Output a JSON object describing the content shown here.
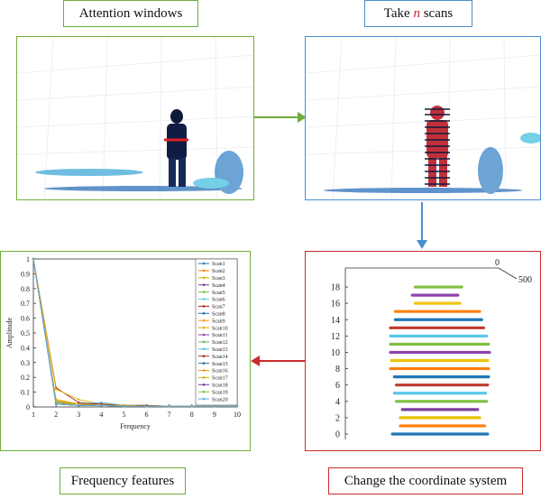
{
  "labels": {
    "attention": "Attention windows",
    "take_prefix": "Take ",
    "take_n": "n",
    "take_suffix": " scans",
    "frequency_features": "Frequency features",
    "change_coordinate": "Change the coordinate system"
  },
  "colors": {
    "green": "#6fae3a",
    "blue": "#4a8fd0",
    "red": "#cc2b2b"
  },
  "chart_data": [
    {
      "type": "line",
      "xlabel": "Frequency",
      "ylabel": "Amplitude",
      "x": [
        1,
        2,
        3,
        4,
        5,
        6,
        7,
        8,
        9,
        10
      ],
      "xlim": [
        1,
        10
      ],
      "ylim": [
        0,
        1
      ],
      "x_ticks": [
        "1",
        "2",
        "3",
        "4",
        "5",
        "6",
        "7",
        "8",
        "9",
        "10"
      ],
      "y_ticks": [
        "0",
        "0.1",
        "0.2",
        "0.3",
        "0.4",
        "0.5",
        "0.6",
        "0.7",
        "0.8",
        "0.9",
        "1"
      ],
      "legend_position": "top-right",
      "series": [
        {
          "name": "Scan1",
          "color": "#1f77b4",
          "values": [
            1,
            0.03,
            0.01,
            0.01,
            0.005,
            0.005,
            0.005,
            0.005,
            0.005,
            0.005
          ]
        },
        {
          "name": "Scan2",
          "color": "#ff7f0e",
          "values": [
            1,
            0.04,
            0.02,
            0.01,
            0.01,
            0.005,
            0.005,
            0.005,
            0.005,
            0.005
          ]
        },
        {
          "name": "Scan3",
          "color": "#c8b400",
          "values": [
            1,
            0.05,
            0.02,
            0.01,
            0.01,
            0.005,
            0.005,
            0.005,
            0.005,
            0.005
          ]
        },
        {
          "name": "Scan4",
          "color": "#7b3f9e",
          "values": [
            1,
            0.02,
            0.01,
            0.01,
            0.005,
            0.005,
            0.005,
            0.005,
            0.005,
            0.005
          ]
        },
        {
          "name": "Scan5",
          "color": "#7fbf3f",
          "values": [
            1,
            0.03,
            0.01,
            0.01,
            0.005,
            0.005,
            0.005,
            0.005,
            0.005,
            0.005
          ]
        },
        {
          "name": "Scan6",
          "color": "#5bc8e8",
          "values": [
            1,
            0.04,
            0.02,
            0.01,
            0.01,
            0.005,
            0.005,
            0.005,
            0.005,
            0.005
          ]
        },
        {
          "name": "Scan7",
          "color": "#b22222",
          "values": [
            1,
            0.13,
            0.03,
            0.02,
            0.01,
            0.01,
            0.005,
            0.005,
            0.005,
            0.005
          ]
        },
        {
          "name": "Scan8",
          "color": "#1f6fb4",
          "values": [
            1,
            0.03,
            0.02,
            0.01,
            0.01,
            0.005,
            0.005,
            0.005,
            0.005,
            0.005
          ]
        },
        {
          "name": "Scan9",
          "color": "#ff9900",
          "values": [
            1,
            0.05,
            0.02,
            0.01,
            0.01,
            0.005,
            0.005,
            0.005,
            0.005,
            0.005
          ]
        },
        {
          "name": "Scan10",
          "color": "#e0b000",
          "values": [
            1,
            0.12,
            0.05,
            0.02,
            0.01,
            0.01,
            0.005,
            0.005,
            0.005,
            0.005
          ]
        },
        {
          "name": "Scan11",
          "color": "#8e44ad",
          "values": [
            1,
            0.02,
            0.01,
            0.01,
            0.005,
            0.005,
            0.005,
            0.005,
            0.005,
            0.005
          ]
        },
        {
          "name": "Scan12",
          "color": "#6ab04c",
          "values": [
            1,
            0.03,
            0.02,
            0.01,
            0.01,
            0.005,
            0.005,
            0.005,
            0.005,
            0.005
          ]
        },
        {
          "name": "Scan13",
          "color": "#48c0e0",
          "values": [
            1,
            0.04,
            0.02,
            0.03,
            0.01,
            0.01,
            0.005,
            0.005,
            0.005,
            0.005
          ]
        },
        {
          "name": "Scan14",
          "color": "#a93226",
          "values": [
            1,
            0.03,
            0.02,
            0.02,
            0.01,
            0.01,
            0.005,
            0.005,
            0.005,
            0.005
          ]
        },
        {
          "name": "Scan15",
          "color": "#2471a3",
          "values": [
            1,
            0.02,
            0.01,
            0.01,
            0.005,
            0.005,
            0.005,
            0.005,
            0.005,
            0.005
          ]
        },
        {
          "name": "Scan16",
          "color": "#f39c12",
          "values": [
            1,
            0.03,
            0.02,
            0.01,
            0.01,
            0.005,
            0.005,
            0.005,
            0.005,
            0.005
          ]
        },
        {
          "name": "Scan17",
          "color": "#d4ac0d",
          "values": [
            1,
            0.04,
            0.02,
            0.01,
            0.01,
            0.005,
            0.005,
            0.005,
            0.005,
            0.005
          ]
        },
        {
          "name": "Scan18",
          "color": "#7d3c98",
          "values": [
            1,
            0.02,
            0.01,
            0.01,
            0.005,
            0.005,
            0.005,
            0.005,
            0.005,
            0.005
          ]
        },
        {
          "name": "Scan19",
          "color": "#82c341",
          "values": [
            1,
            0.03,
            0.01,
            0.01,
            0.005,
            0.005,
            0.005,
            0.005,
            0.005,
            0.005
          ]
        },
        {
          "name": "Scan20",
          "color": "#5dade2",
          "values": [
            1,
            0.02,
            0.01,
            0.01,
            0.005,
            0.005,
            0.005,
            0.005,
            0.005,
            0.005
          ]
        }
      ]
    },
    {
      "type": "scatter",
      "y_ticks": [
        "0",
        "2",
        "4",
        "6",
        "8",
        "10",
        "12",
        "14",
        "16",
        "18"
      ],
      "ylim": [
        0,
        19
      ],
      "x_axis_labels": [
        "0",
        "500"
      ],
      "series": [
        {
          "y": 0,
          "x": [
            0.02,
            0.98
          ],
          "color": "#1f77b4"
        },
        {
          "y": 1,
          "x": [
            0.1,
            0.95
          ],
          "color": "#ff7f0e"
        },
        {
          "y": 2,
          "x": [
            0.1,
            0.9
          ],
          "color": "#e6c200"
        },
        {
          "y": 3,
          "x": [
            0.12,
            0.88
          ],
          "color": "#7b3f9e"
        },
        {
          "y": 4,
          "x": [
            0.06,
            0.97
          ],
          "color": "#7fbf3f"
        },
        {
          "y": 5,
          "x": [
            0.04,
            0.96
          ],
          "color": "#5bc8e8"
        },
        {
          "y": 6,
          "x": [
            0.06,
            0.98
          ],
          "color": "#c0392b"
        },
        {
          "y": 7,
          "x": [
            0.04,
            0.99
          ],
          "color": "#1f77b4"
        },
        {
          "y": 8,
          "x": [
            0.0,
            0.99
          ],
          "color": "#ff7f0e"
        },
        {
          "y": 9,
          "x": [
            0.01,
            0.98
          ],
          "color": "#f1c40f"
        },
        {
          "y": 10,
          "x": [
            0.0,
            1.0
          ],
          "color": "#8e44ad"
        },
        {
          "y": 11,
          "x": [
            0.0,
            0.99
          ],
          "color": "#7fbf3f"
        },
        {
          "y": 12,
          "x": [
            0.0,
            0.97
          ],
          "color": "#5bc8e8"
        },
        {
          "y": 13,
          "x": [
            0.0,
            0.94
          ],
          "color": "#c0392b"
        },
        {
          "y": 14,
          "x": [
            0.05,
            0.92
          ],
          "color": "#1f77b4"
        },
        {
          "y": 15,
          "x": [
            0.05,
            0.9
          ],
          "color": "#ff7f0e"
        },
        {
          "y": 16,
          "x": [
            0.25,
            0.7
          ],
          "color": "#f1c40f"
        },
        {
          "y": 17,
          "x": [
            0.22,
            0.68
          ],
          "color": "#8e44ad"
        },
        {
          "y": 18,
          "x": [
            0.25,
            0.72
          ],
          "color": "#7fbf3f"
        }
      ]
    }
  ]
}
